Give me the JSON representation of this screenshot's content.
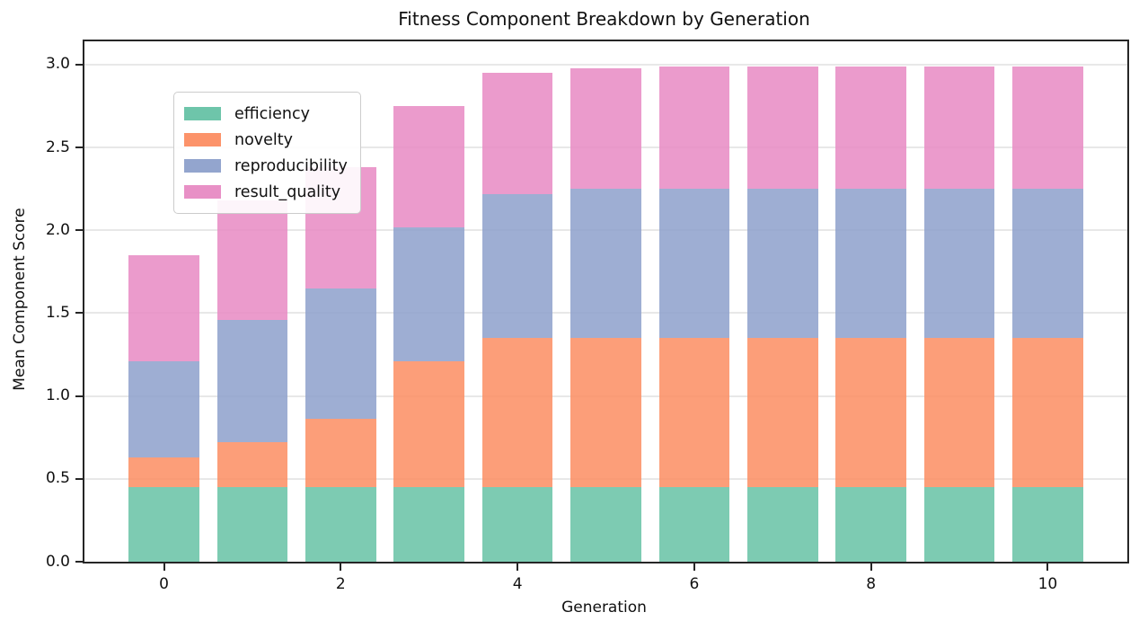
{
  "chart_data": {
    "type": "bar",
    "stacked": true,
    "title": "Fitness Component Breakdown by Generation",
    "xlabel": "Generation",
    "ylabel": "Mean Component Score",
    "categories": [
      0,
      1,
      2,
      3,
      4,
      5,
      6,
      7,
      8,
      9,
      10
    ],
    "series": [
      {
        "name": "efficiency",
        "color": "#66c2a5",
        "values": [
          0.45,
          0.45,
          0.45,
          0.45,
          0.45,
          0.45,
          0.45,
          0.45,
          0.45,
          0.45,
          0.45
        ]
      },
      {
        "name": "novelty",
        "color": "#fc8d62",
        "values": [
          0.18,
          0.27,
          0.41,
          0.76,
          0.9,
          0.9,
          0.9,
          0.9,
          0.9,
          0.9,
          0.9
        ]
      },
      {
        "name": "reproducibility",
        "color": "#8da0cb",
        "values": [
          0.58,
          0.74,
          0.79,
          0.81,
          0.87,
          0.9,
          0.9,
          0.9,
          0.9,
          0.9,
          0.9
        ]
      },
      {
        "name": "result_quality",
        "color": "#e78ac3",
        "values": [
          0.64,
          0.72,
          0.73,
          0.73,
          0.73,
          0.73,
          0.74,
          0.74,
          0.74,
          0.74,
          0.74
        ]
      }
    ],
    "stack_totals": [
      1.85,
      2.18,
      2.38,
      2.75,
      2.95,
      2.98,
      2.99,
      2.99,
      2.99,
      2.99,
      2.99
    ],
    "bar_alpha": 0.85,
    "bar_width": 0.8,
    "xlim": [
      -0.9,
      10.9
    ],
    "ylim": [
      0,
      3.14
    ],
    "xticks": [
      0,
      2,
      4,
      6,
      8,
      10
    ],
    "ytick_labels": [
      "0.0",
      "0.5",
      "1.0",
      "1.5",
      "2.0",
      "2.5",
      "3.0"
    ],
    "grid": true,
    "grid_color": "#e8e8e8",
    "axis_color": "#262626",
    "legend_position": "upper left",
    "legend_labels": [
      "efficiency",
      "novelty",
      "reproducibility",
      "result_quality"
    ]
  }
}
